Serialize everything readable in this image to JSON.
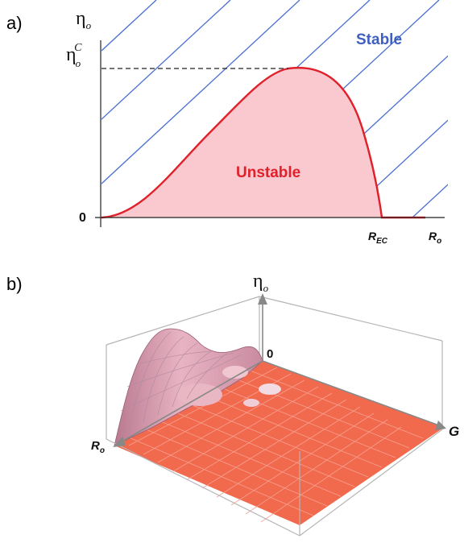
{
  "panel_a": {
    "label": "a)",
    "y_axis_label": "η",
    "y_axis_label_sub": "o",
    "critical_label": "η",
    "critical_label_sub": "o",
    "critical_label_sup": "C",
    "zero_label": "0",
    "region_stable": "Stable",
    "region_unstable": "Unstable",
    "x_tick_label": "R",
    "x_tick_label_sub": "EC",
    "x_axis_label": "R",
    "x_axis_label_sub": "o",
    "colors": {
      "curve": "#e0202a",
      "fill": "#f9c9cf",
      "hatch": "#4a6fd1",
      "stable_text": "#3f5fbf",
      "unstable_text": "#e0202a"
    }
  },
  "panel_b": {
    "label": "b)",
    "vertical_axis_label": "η",
    "vertical_axis_label_sub": "o",
    "origin_label": "0",
    "left_axis_label": "R",
    "left_axis_label_sub": "o",
    "right_axis_label": "G",
    "colors": {
      "floor": "#f26a4e",
      "mesh": "#c7c7d6",
      "hump": "#d790a6",
      "box": "#b5b5b5"
    }
  }
}
